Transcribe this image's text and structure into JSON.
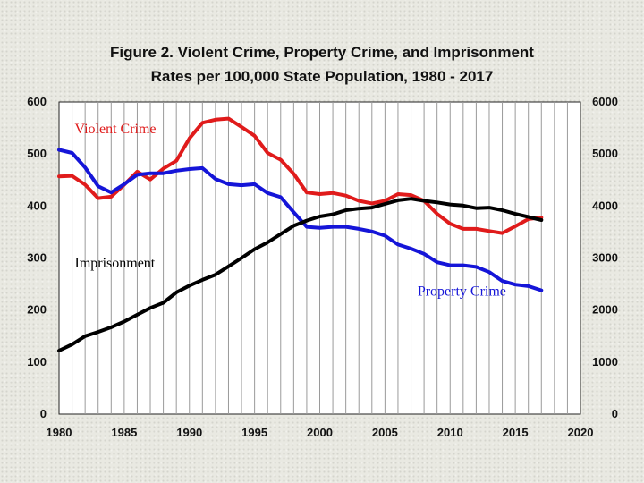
{
  "chart_data": {
    "type": "line",
    "title_line1": "Figure 2. Violent Crime, Property Crime, and Imprisonment",
    "title_line2": "Rates per 100,000 State Population, 1980 - 2017",
    "xlim": [
      1980,
      2020
    ],
    "x_ticks": [
      "1980",
      "1985",
      "1990",
      "1995",
      "2000",
      "2005",
      "2010",
      "2015",
      "2020"
    ],
    "ylim_left": [
      0,
      600
    ],
    "ylim_right": [
      0,
      6000
    ],
    "y_ticks_left": [
      "0",
      "100",
      "200",
      "300",
      "400",
      "500",
      "600"
    ],
    "y_ticks_right": [
      "0",
      "1000",
      "2000",
      "3000",
      "4000",
      "5000",
      "6000"
    ],
    "grid": "vertical",
    "series": [
      {
        "name": "Violent Crime",
        "axis": "left",
        "color": "#e01b1b",
        "x": [
          1980,
          1981,
          1982,
          1983,
          1984,
          1985,
          1986,
          1987,
          1988,
          1989,
          1990,
          1991,
          1992,
          1993,
          1994,
          1995,
          1996,
          1997,
          1998,
          1999,
          2000,
          2001,
          2002,
          2003,
          2004,
          2005,
          2006,
          2007,
          2008,
          2009,
          2010,
          2011,
          2012,
          2013,
          2014,
          2015,
          2016,
          2017
        ],
        "values": [
          457,
          458,
          441,
          415,
          418,
          441,
          466,
          451,
          472,
          487,
          530,
          560,
          566,
          568,
          552,
          535,
          502,
          489,
          462,
          426,
          423,
          425,
          420,
          410,
          405,
          410,
          423,
          421,
          410,
          385,
          366,
          356,
          356,
          352,
          348,
          361,
          375,
          378
        ]
      },
      {
        "name": "Property Crime",
        "axis": "right",
        "color": "#1515d8",
        "x": [
          1980,
          1981,
          1982,
          1983,
          1984,
          1985,
          1986,
          1987,
          1988,
          1989,
          1990,
          1991,
          1992,
          1993,
          1994,
          1995,
          1996,
          1997,
          1998,
          1999,
          2000,
          2001,
          2002,
          2003,
          2004,
          2005,
          2006,
          2007,
          2008,
          2009,
          2010,
          2011,
          2012,
          2013,
          2014,
          2015,
          2016,
          2017
        ],
        "values": [
          5080,
          5020,
          4740,
          4380,
          4260,
          4420,
          4600,
          4630,
          4630,
          4680,
          4710,
          4730,
          4520,
          4420,
          4400,
          4420,
          4250,
          4170,
          3880,
          3600,
          3580,
          3600,
          3600,
          3560,
          3510,
          3430,
          3260,
          3180,
          3080,
          2920,
          2860,
          2860,
          2830,
          2730,
          2560,
          2490,
          2460,
          2380
        ]
      },
      {
        "name": "Imprisonment",
        "axis": "left",
        "color": "#000000",
        "x": [
          1980,
          1981,
          1982,
          1983,
          1984,
          1985,
          1986,
          1987,
          1988,
          1989,
          1990,
          1991,
          1992,
          1993,
          1994,
          1995,
          1996,
          1997,
          1998,
          1999,
          2000,
          2001,
          2002,
          2003,
          2004,
          2005,
          2006,
          2007,
          2008,
          2009,
          2010,
          2011,
          2012,
          2013,
          2014,
          2015,
          2016,
          2017
        ],
        "values": [
          122,
          134,
          150,
          158,
          167,
          178,
          191,
          204,
          214,
          234,
          247,
          258,
          268,
          284,
          300,
          317,
          330,
          346,
          362,
          372,
          380,
          384,
          392,
          395,
          397,
          404,
          411,
          414,
          410,
          407,
          403,
          401,
          396,
          397,
          392,
          385,
          379,
          373
        ]
      }
    ],
    "annotations": [
      {
        "text": "Violent Crime",
        "color": "#e01b1b",
        "x": 1981.2,
        "y": 540
      },
      {
        "text": "Imprisonment",
        "color": "#000000",
        "x": 1981.2,
        "y": 282
      },
      {
        "text": "Property Crime",
        "color": "#1515d8",
        "x": 2007.5,
        "y": 228
      }
    ]
  }
}
